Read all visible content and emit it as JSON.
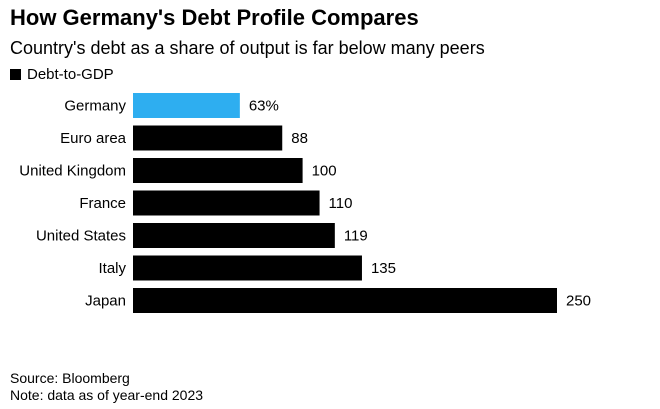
{
  "title": "How Germany's Debt Profile Compares",
  "subtitle": "Country's debt as a share of output is far below many peers",
  "colors": {
    "highlight": "#2eaef0",
    "default": "#000000",
    "text": "#000000"
  },
  "chart_data": {
    "type": "bar",
    "orientation": "horizontal",
    "categories": [
      "Germany",
      "Euro area",
      "United Kingdom",
      "France",
      "United States",
      "Italy",
      "Japan"
    ],
    "series": [
      {
        "name": "Debt-to-GDP",
        "values": [
          63,
          88,
          100,
          110,
          119,
          135,
          250
        ],
        "labels": [
          "63%",
          "88",
          "100",
          "110",
          "119",
          "135",
          "250"
        ]
      }
    ],
    "highlight_category": "Germany",
    "xlim": [
      0,
      250
    ],
    "grid": false,
    "legend": "top-left"
  },
  "footer": {
    "source": "Source: Bloomberg",
    "note": "Note: data as of year-end 2023"
  }
}
